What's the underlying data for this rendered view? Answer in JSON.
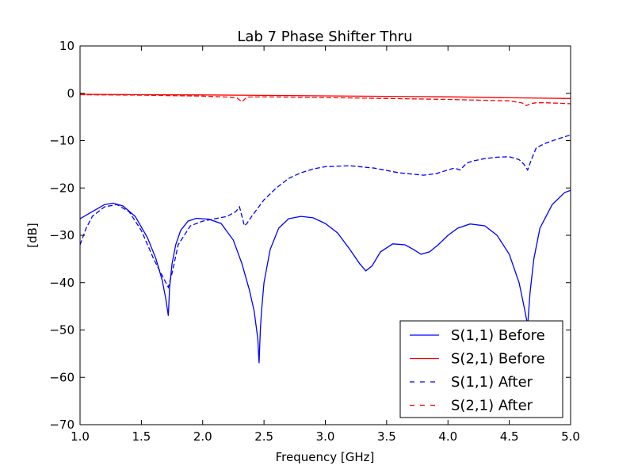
{
  "chart_data": {
    "type": "line",
    "title": "Lab 7 Phase Shifter Thru",
    "xlabel": "Frequency [GHz]",
    "ylabel": "[dB]",
    "xlim": [
      1.0,
      5.0
    ],
    "ylim": [
      -70,
      10
    ],
    "xticks": [
      "1.0",
      "1.5",
      "2.0",
      "2.5",
      "3.0",
      "3.5",
      "4.0",
      "4.5",
      "5.0"
    ],
    "yticks": [
      "10",
      "0",
      "−10",
      "−20",
      "−30",
      "−40",
      "−50",
      "−60",
      "−70"
    ],
    "grid": false,
    "legend_position": "lower-right",
    "series": [
      {
        "name": "S(1,1) Before",
        "color": "#0000ff",
        "dash": "solid",
        "x": [
          1.0,
          1.1,
          1.2,
          1.27,
          1.35,
          1.45,
          1.55,
          1.62,
          1.67,
          1.7,
          1.72,
          1.73,
          1.75,
          1.78,
          1.82,
          1.88,
          1.95,
          2.05,
          2.15,
          2.25,
          2.32,
          2.38,
          2.42,
          2.45,
          2.46,
          2.47,
          2.48,
          2.5,
          2.55,
          2.62,
          2.7,
          2.8,
          2.9,
          3.0,
          3.1,
          3.2,
          3.28,
          3.33,
          3.38,
          3.45,
          3.55,
          3.65,
          3.72,
          3.78,
          3.85,
          3.92,
          4.0,
          4.08,
          4.18,
          4.3,
          4.4,
          4.5,
          4.58,
          4.62,
          4.65,
          4.67,
          4.7,
          4.75,
          4.85,
          4.95,
          5.0
        ],
        "y": [
          -26.5,
          -25.0,
          -23.5,
          -23.2,
          -23.8,
          -26.0,
          -30.5,
          -35.0,
          -39.5,
          -43.5,
          -47.0,
          -41.0,
          -36.0,
          -32.0,
          -29.0,
          -27.0,
          -26.4,
          -26.6,
          -27.5,
          -31.0,
          -36.0,
          -41.5,
          -46.0,
          -52.0,
          -57.0,
          -50.0,
          -46.0,
          -40.0,
          -33.0,
          -28.5,
          -26.5,
          -26.0,
          -26.3,
          -27.5,
          -29.5,
          -33.0,
          -36.0,
          -37.5,
          -36.5,
          -33.5,
          -31.8,
          -32.0,
          -33.0,
          -34.0,
          -33.5,
          -32.0,
          -30.0,
          -28.5,
          -27.6,
          -28.0,
          -30.0,
          -34.0,
          -40.0,
          -45.0,
          -49.0,
          -42.0,
          -35.0,
          -28.5,
          -23.5,
          -21.0,
          -20.5
        ]
      },
      {
        "name": "S(2,1) Before",
        "color": "#ff0000",
        "dash": "solid",
        "x": [
          1.0,
          1.5,
          2.0,
          2.5,
          3.0,
          3.5,
          4.0,
          4.5,
          5.0
        ],
        "y": [
          -0.2,
          -0.3,
          -0.35,
          -0.45,
          -0.55,
          -0.65,
          -0.75,
          -0.95,
          -1.1
        ]
      },
      {
        "name": "S(1,1) After",
        "color": "#0000ff",
        "dash": "dashed",
        "x": [
          1.0,
          1.05,
          1.1,
          1.2,
          1.3,
          1.4,
          1.5,
          1.6,
          1.68,
          1.72,
          1.75,
          1.8,
          1.9,
          2.0,
          2.1,
          2.2,
          2.27,
          2.3,
          2.32,
          2.34,
          2.36,
          2.4,
          2.5,
          2.6,
          2.7,
          2.8,
          2.9,
          3.0,
          3.2,
          3.4,
          3.6,
          3.8,
          3.9,
          4.0,
          4.05,
          4.1,
          4.15,
          4.2,
          4.3,
          4.4,
          4.5,
          4.58,
          4.62,
          4.65,
          4.68,
          4.72,
          4.8,
          4.9,
          5.0
        ],
        "y": [
          -32.0,
          -28.5,
          -26.0,
          -24.0,
          -23.5,
          -25.0,
          -29.0,
          -35.0,
          -39.0,
          -41.0,
          -38.0,
          -32.0,
          -28.0,
          -27.0,
          -26.5,
          -26.0,
          -25.0,
          -24.0,
          -26.0,
          -28.0,
          -27.5,
          -26.0,
          -22.5,
          -20.0,
          -18.0,
          -16.8,
          -16.0,
          -15.5,
          -15.3,
          -15.8,
          -16.8,
          -17.3,
          -17.0,
          -16.2,
          -15.8,
          -16.2,
          -14.8,
          -14.3,
          -13.8,
          -13.5,
          -13.4,
          -14.0,
          -15.0,
          -16.2,
          -14.0,
          -11.5,
          -10.5,
          -9.6,
          -8.8
        ]
      },
      {
        "name": "S(2,1) After",
        "color": "#ff0000",
        "dash": "dashed",
        "x": [
          1.0,
          1.5,
          2.0,
          2.2,
          2.28,
          2.32,
          2.36,
          2.5,
          3.0,
          3.5,
          4.0,
          4.5,
          4.6,
          4.64,
          4.67,
          4.72,
          4.8,
          5.0
        ],
        "y": [
          -0.3,
          -0.4,
          -0.6,
          -0.8,
          -1.0,
          -1.8,
          -0.8,
          -0.75,
          -0.9,
          -1.1,
          -1.3,
          -1.6,
          -2.0,
          -2.6,
          -2.2,
          -2.0,
          -2.0,
          -2.2
        ]
      }
    ]
  }
}
